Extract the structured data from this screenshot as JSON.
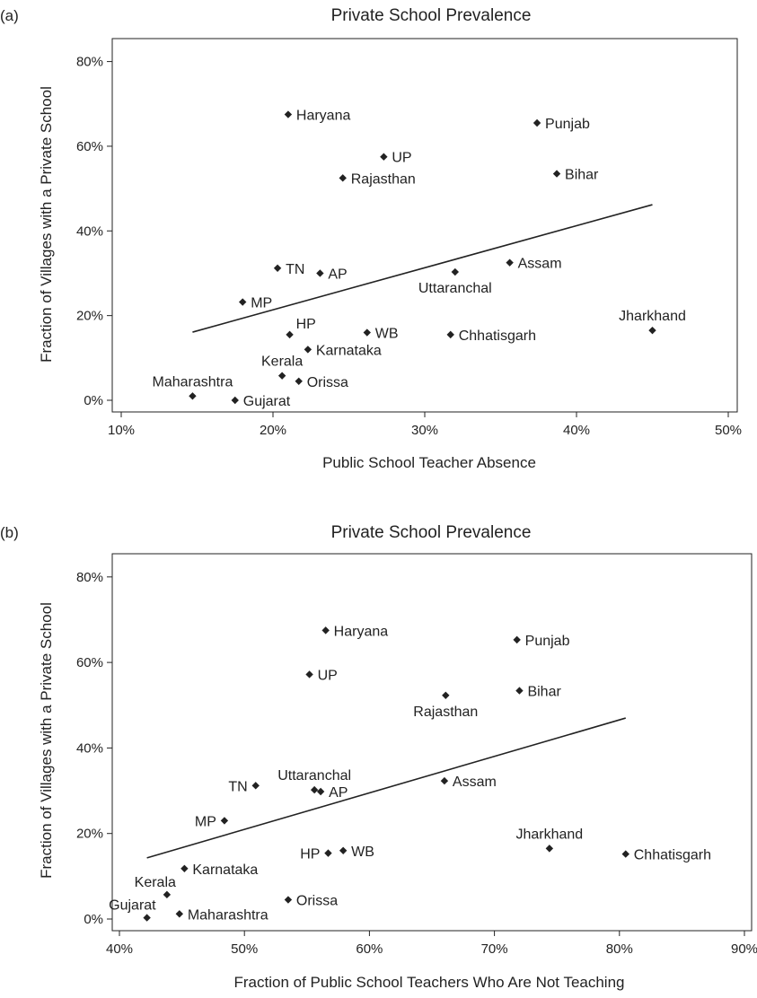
{
  "chart_data": [
    {
      "type": "scatter",
      "panel": "(a)",
      "title": "Private School Prevalence",
      "xlabel": "Public School Teacher Absence",
      "ylabel": "Fraction of Villages with a Private School",
      "xlim": [
        10,
        50
      ],
      "ylim": [
        0,
        80
      ],
      "xticks": [
        10,
        20,
        30,
        40,
        50
      ],
      "xtick_labels": [
        "10%",
        "20%",
        "30%",
        "40%",
        "50%"
      ],
      "yticks": [
        0,
        20,
        40,
        60,
        80
      ],
      "ytick_labels": [
        "0%",
        "20%",
        "40%",
        "60%",
        "80%"
      ],
      "points": [
        {
          "label": "Haryana",
          "x": 21.0,
          "y": 67.5,
          "pos": "right"
        },
        {
          "label": "Punjab",
          "x": 37.4,
          "y": 65.5,
          "pos": "right"
        },
        {
          "label": "UP",
          "x": 27.3,
          "y": 57.5,
          "pos": "right"
        },
        {
          "label": "Bihar",
          "x": 38.7,
          "y": 53.5,
          "pos": "right"
        },
        {
          "label": "Rajasthan",
          "x": 24.6,
          "y": 52.5,
          "pos": "right"
        },
        {
          "label": "TN",
          "x": 20.3,
          "y": 31.2,
          "pos": "right"
        },
        {
          "label": "AP",
          "x": 23.1,
          "y": 30.0,
          "pos": "right"
        },
        {
          "label": "Assam",
          "x": 35.6,
          "y": 32.5,
          "pos": "right"
        },
        {
          "label": "Uttaranchal",
          "x": 32.0,
          "y": 30.3,
          "pos": "below"
        },
        {
          "label": "MP",
          "x": 18.0,
          "y": 23.2,
          "pos": "right"
        },
        {
          "label": "Jharkhand",
          "x": 45.0,
          "y": 16.5,
          "pos": "above"
        },
        {
          "label": "HP",
          "x": 21.1,
          "y": 15.5,
          "pos": "above-right"
        },
        {
          "label": "WB",
          "x": 26.2,
          "y": 16.0,
          "pos": "right"
        },
        {
          "label": "Chhatisgarh",
          "x": 31.7,
          "y": 15.5,
          "pos": "right"
        },
        {
          "label": "Karnataka",
          "x": 22.3,
          "y": 12.0,
          "pos": "right"
        },
        {
          "label": "Kerala",
          "x": 20.6,
          "y": 5.8,
          "pos": "above"
        },
        {
          "label": "Orissa",
          "x": 21.7,
          "y": 4.5,
          "pos": "right"
        },
        {
          "label": "Maharashtra",
          "x": 14.7,
          "y": 1.0,
          "pos": "above"
        },
        {
          "label": "Gujarat",
          "x": 17.5,
          "y": 0.0,
          "pos": "right"
        }
      ],
      "fit_line": {
        "x": [
          14.7,
          45.0
        ],
        "y": [
          16.1,
          46.2
        ]
      }
    },
    {
      "type": "scatter",
      "panel": "(b)",
      "title": "Private School Prevalence",
      "xlabel": "Fraction of Public School Teachers Who Are Not Teaching",
      "ylabel": "Fraction of Villages with a Private School",
      "xlim": [
        40,
        90
      ],
      "ylim": [
        0,
        80
      ],
      "xticks": [
        40,
        50,
        60,
        70,
        80,
        90
      ],
      "xtick_labels": [
        "40%",
        "50%",
        "60%",
        "70%",
        "80%",
        "90%"
      ],
      "yticks": [
        0,
        20,
        40,
        60,
        80
      ],
      "ytick_labels": [
        "0%",
        "20%",
        "40%",
        "60%",
        "80%"
      ],
      "points": [
        {
          "label": "Haryana",
          "x": 56.5,
          "y": 67.5,
          "pos": "right"
        },
        {
          "label": "Punjab",
          "x": 71.8,
          "y": 65.3,
          "pos": "right"
        },
        {
          "label": "UP",
          "x": 55.2,
          "y": 57.2,
          "pos": "right"
        },
        {
          "label": "Bihar",
          "x": 72.0,
          "y": 53.4,
          "pos": "right"
        },
        {
          "label": "Rajasthan",
          "x": 66.1,
          "y": 52.3,
          "pos": "below"
        },
        {
          "label": "TN",
          "x": 50.9,
          "y": 31.2,
          "pos": "left"
        },
        {
          "label": "Uttaranchal",
          "x": 55.6,
          "y": 30.2,
          "pos": "above"
        },
        {
          "label": "AP",
          "x": 56.1,
          "y": 29.8,
          "pos": "right"
        },
        {
          "label": "Assam",
          "x": 66.0,
          "y": 32.3,
          "pos": "right"
        },
        {
          "label": "MP",
          "x": 48.4,
          "y": 23.0,
          "pos": "left"
        },
        {
          "label": "Jharkhand",
          "x": 74.4,
          "y": 16.5,
          "pos": "above"
        },
        {
          "label": "Chhatisgarh",
          "x": 80.5,
          "y": 15.2,
          "pos": "right"
        },
        {
          "label": "HP",
          "x": 56.7,
          "y": 15.4,
          "pos": "left"
        },
        {
          "label": "WB",
          "x": 57.9,
          "y": 16.0,
          "pos": "right"
        },
        {
          "label": "Karnataka",
          "x": 45.2,
          "y": 11.8,
          "pos": "right"
        },
        {
          "label": "Kerala",
          "x": 43.8,
          "y": 5.7,
          "pos": "above-left"
        },
        {
          "label": "Orissa",
          "x": 53.5,
          "y": 4.5,
          "pos": "right"
        },
        {
          "label": "Gujarat",
          "x": 42.2,
          "y": 0.3,
          "pos": "above-left"
        },
        {
          "label": "Maharashtra",
          "x": 44.8,
          "y": 1.2,
          "pos": "right"
        }
      ],
      "fit_line": {
        "x": [
          42.2,
          80.5
        ],
        "y": [
          14.3,
          47.0
        ]
      }
    }
  ]
}
